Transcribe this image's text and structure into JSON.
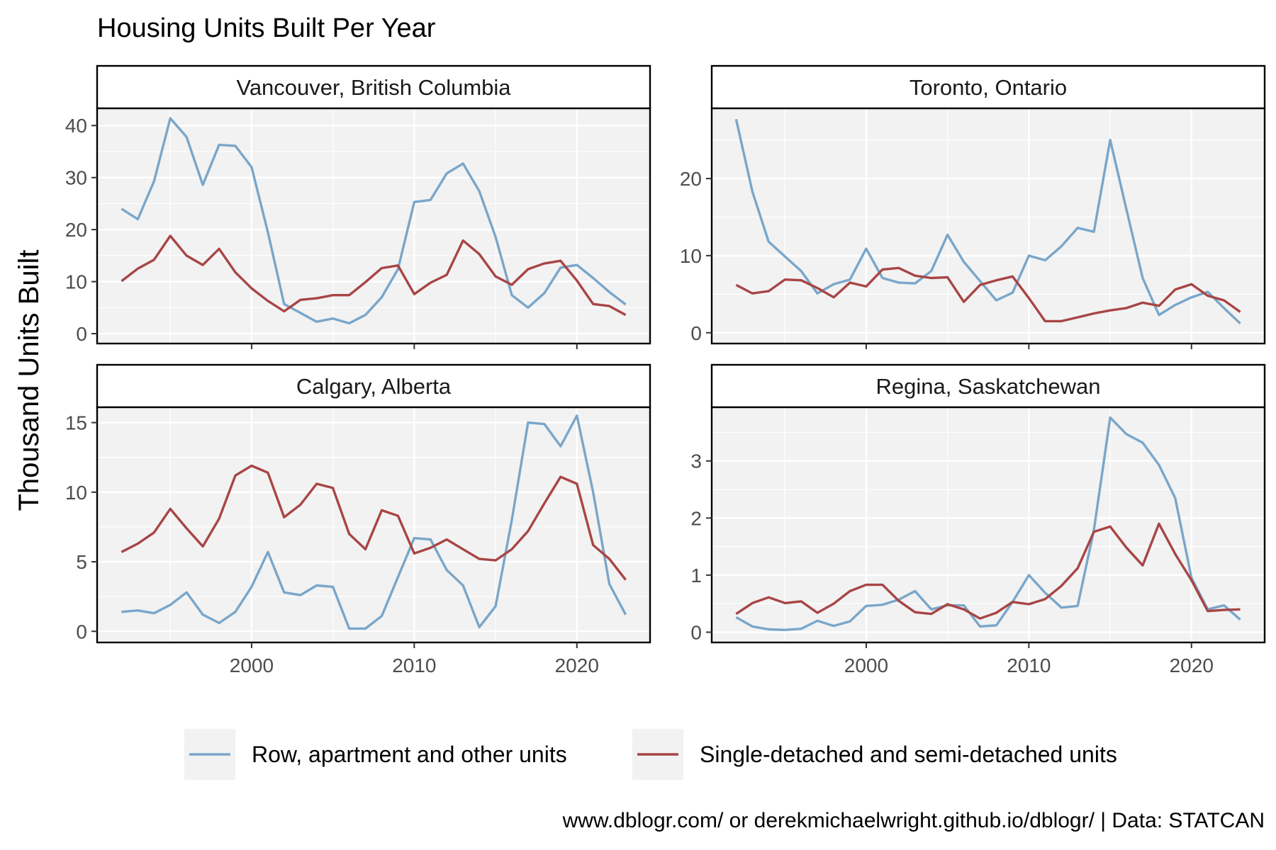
{
  "chart_data": {
    "type": "line",
    "title": "Housing Units Built Per Year",
    "ylabel": "Thousand Units Built",
    "xlabel": "",
    "caption": "www.dblogr.com/ or derekmichaelwright.github.io/dblogr/ | Data: STATCAN",
    "x": [
      1992,
      1993,
      1994,
      1995,
      1996,
      1997,
      1998,
      1999,
      2000,
      2001,
      2002,
      2003,
      2004,
      2005,
      2006,
      2007,
      2008,
      2009,
      2010,
      2011,
      2012,
      2013,
      2014,
      2015,
      2016,
      2017,
      2018,
      2019,
      2020,
      2021,
      2022,
      2023
    ],
    "xlim": [
      1990.5,
      2024.5
    ],
    "x_ticks": [
      2000,
      2010,
      2020
    ],
    "legend_position": "bottom",
    "grid": true,
    "colors": {
      "row_apartment": "#7aa6c9",
      "single_semi": "#a84545",
      "panel_bg": "#f2f2f2",
      "grid": "#ffffff"
    },
    "legend": [
      {
        "key": "row_apartment",
        "label": "Row, apartment and other units"
      },
      {
        "key": "single_semi",
        "label": "Single-detached and semi-detached units"
      }
    ],
    "panels": [
      {
        "strip": "Vancouver, British Columbia",
        "ylim": [
          -1.9,
          43.3
        ],
        "y_ticks": [
          0,
          10,
          20,
          30,
          40
        ],
        "series": [
          {
            "key": "row_apartment",
            "values": [
              24.0,
              22.0,
              29.3,
              41.4,
              37.8,
              28.6,
              36.3,
              36.1,
              32.0,
              19.5,
              5.7,
              4.0,
              2.3,
              2.9,
              2.0,
              3.6,
              7.0,
              12.4,
              25.3,
              25.7,
              30.8,
              32.7,
              27.4,
              18.6,
              7.4,
              5.0,
              7.8,
              12.7,
              13.2,
              10.7,
              8.0,
              5.6
            ]
          },
          {
            "key": "single_semi",
            "values": [
              10.1,
              12.5,
              14.2,
              18.8,
              15.0,
              13.2,
              16.3,
              11.8,
              8.7,
              6.3,
              4.3,
              6.5,
              6.8,
              7.4,
              7.4,
              9.9,
              12.6,
              13.1,
              7.6,
              9.8,
              11.3,
              17.9,
              15.3,
              11.0,
              9.4,
              12.4,
              13.5,
              14.0,
              10.2,
              5.7,
              5.3,
              3.6
            ]
          }
        ]
      },
      {
        "strip": "Toronto, Ontario",
        "ylim": [
          -1.4,
          29.1
        ],
        "y_ticks": [
          0,
          10,
          20
        ],
        "series": [
          {
            "key": "row_apartment",
            "values": [
              27.7,
              18.3,
              11.8,
              9.9,
              8.0,
              5.1,
              6.3,
              6.9,
              10.9,
              7.1,
              6.5,
              6.4,
              8.0,
              12.7,
              9.2,
              6.7,
              4.2,
              5.2,
              10.0,
              9.4,
              11.2,
              13.6,
              13.1,
              25.0,
              16.0,
              7.1,
              2.3,
              3.6,
              4.6,
              5.3,
              3.2,
              1.2
            ]
          },
          {
            "key": "single_semi",
            "values": [
              6.2,
              5.1,
              5.4,
              6.9,
              6.8,
              5.8,
              4.6,
              6.5,
              6.0,
              8.2,
              8.4,
              7.4,
              7.1,
              7.2,
              4.0,
              6.2,
              6.8,
              7.3,
              4.5,
              1.5,
              1.5,
              2.0,
              2.5,
              2.9,
              3.2,
              3.9,
              3.5,
              5.6,
              6.3,
              4.8,
              4.2,
              2.7
            ]
          }
        ]
      },
      {
        "strip": "Calgary, Alberta",
        "ylim": [
          -0.8,
          16.1
        ],
        "y_ticks": [
          0,
          5,
          10,
          15
        ],
        "series": [
          {
            "key": "row_apartment",
            "values": [
              1.4,
              1.5,
              1.3,
              1.9,
              2.8,
              1.2,
              0.6,
              1.4,
              3.2,
              5.7,
              2.8,
              2.6,
              3.3,
              3.2,
              0.2,
              0.2,
              1.1,
              3.9,
              6.7,
              6.6,
              4.4,
              3.3,
              0.3,
              1.8,
              8.0,
              15.0,
              14.9,
              13.3,
              15.5,
              10.0,
              3.4,
              1.2
            ]
          },
          {
            "key": "single_semi",
            "values": [
              5.7,
              6.3,
              7.1,
              8.8,
              7.4,
              6.1,
              8.1,
              11.2,
              11.9,
              11.4,
              8.2,
              9.1,
              10.6,
              10.3,
              7.0,
              5.9,
              8.7,
              8.3,
              5.6,
              6.0,
              6.6,
              5.9,
              5.2,
              5.1,
              5.9,
              7.2,
              9.2,
              11.1,
              10.6,
              6.2,
              5.2,
              3.7
            ]
          }
        ]
      },
      {
        "strip": "Regina, Saskatchewan",
        "ylim": [
          -0.18,
          3.94
        ],
        "y_ticks": [
          0,
          1,
          2,
          3
        ],
        "series": [
          {
            "key": "row_apartment",
            "values": [
              0.26,
              0.1,
              0.05,
              0.04,
              0.06,
              0.2,
              0.11,
              0.19,
              0.46,
              0.48,
              0.57,
              0.72,
              0.4,
              0.47,
              0.47,
              0.1,
              0.12,
              0.53,
              1.0,
              0.69,
              0.43,
              0.46,
              1.79,
              3.76,
              3.47,
              3.32,
              2.93,
              2.35,
              0.95,
              0.4,
              0.47,
              0.22
            ]
          },
          {
            "key": "single_semi",
            "values": [
              0.32,
              0.51,
              0.61,
              0.51,
              0.54,
              0.34,
              0.5,
              0.72,
              0.83,
              0.83,
              0.55,
              0.35,
              0.32,
              0.49,
              0.4,
              0.24,
              0.34,
              0.53,
              0.49,
              0.58,
              0.81,
              1.12,
              1.76,
              1.85,
              1.48,
              1.17,
              1.9,
              1.37,
              0.91,
              0.37,
              0.39,
              0.4
            ]
          }
        ]
      }
    ]
  }
}
